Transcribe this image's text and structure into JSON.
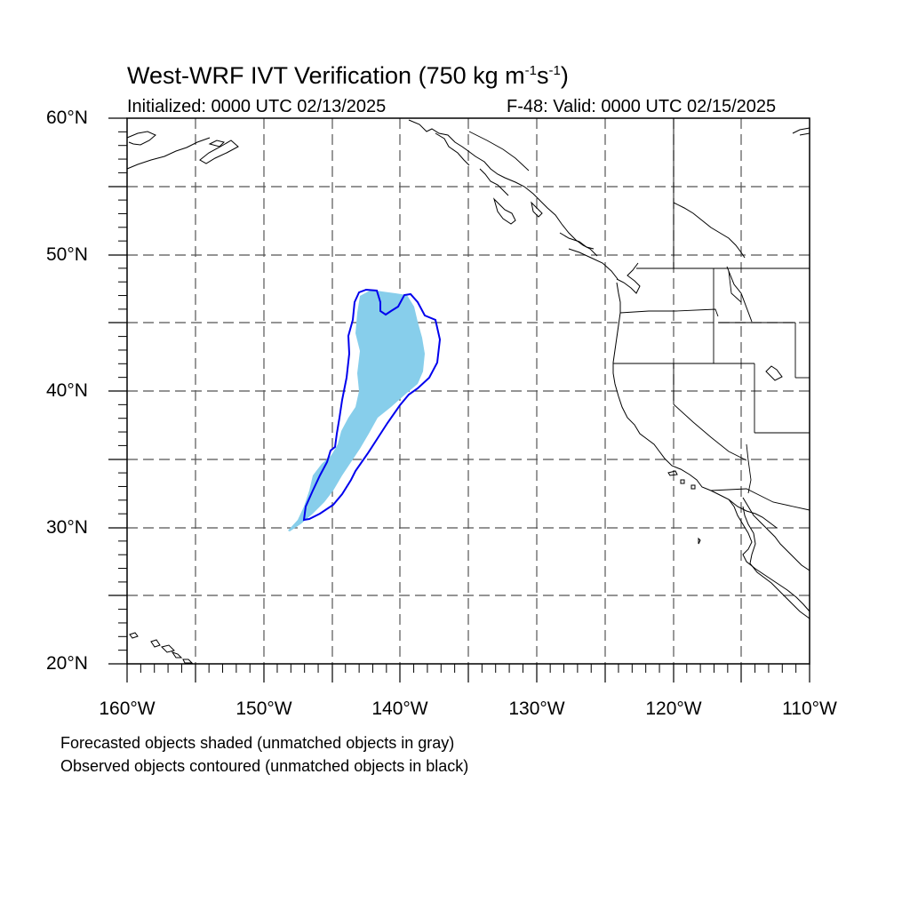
{
  "header": {
    "title_main": "West-WRF IVT Verification (750 kg m",
    "title_exp1": "-1",
    "title_mid": "s",
    "title_exp2": "-1",
    "title_end": ")",
    "initialized": "Initialized: 0000 UTC 02/13/2025",
    "valid": "F-48: Valid: 0000 UTC 02/15/2025"
  },
  "map": {
    "lon_range": [
      -160,
      -110
    ],
    "lat_range": [
      20,
      60
    ],
    "grid_step_deg": 5,
    "grid": "dashed",
    "lat_labels": [
      "60°N",
      "50°N",
      "40°N",
      "30°N",
      "20°N"
    ],
    "lon_labels": [
      "160°W",
      "150°W",
      "140°W",
      "130°W",
      "120°W",
      "110°W"
    ],
    "forecast_color": "#87ceeb",
    "observed_color": "#0000ee"
  },
  "legend": {
    "line1": "Forecasted objects shaded (unmatched objects in gray)",
    "line2": "Observed objects contoured (unmatched objects in black)"
  }
}
